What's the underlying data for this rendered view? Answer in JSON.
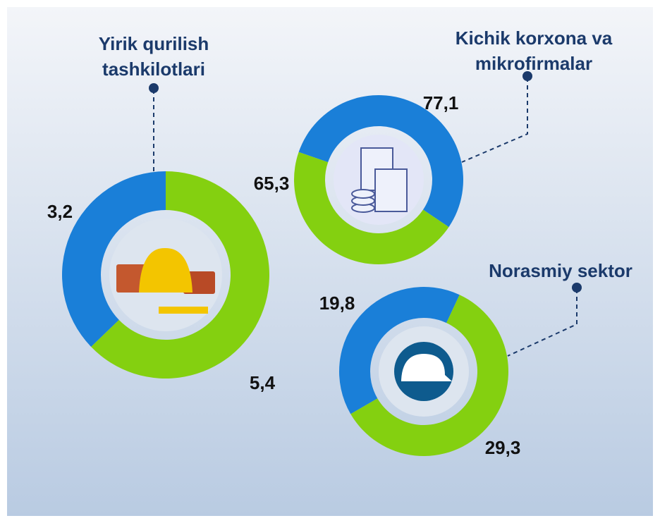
{
  "chart_data": [
    {
      "type": "donut",
      "title": "Yirik qurilish tashkilotlari",
      "values": [
        3.2,
        5.4
      ],
      "value_labels": [
        "3,2",
        "5,4"
      ],
      "colors": [
        "#1a7fd8",
        "#84d010"
      ]
    },
    {
      "type": "donut",
      "title": "Kichik korxona va mikrofirmalar",
      "values": [
        77.1,
        65.3
      ],
      "value_labels": [
        "77,1",
        "65,3"
      ],
      "colors": [
        "#1a7fd8",
        "#84d010"
      ]
    },
    {
      "type": "donut",
      "title": "Norasmiy sektor",
      "values": [
        19.8,
        29.3
      ],
      "value_labels": [
        "19,8",
        "29,3"
      ],
      "colors": [
        "#1a7fd8",
        "#84d010"
      ]
    }
  ]
}
